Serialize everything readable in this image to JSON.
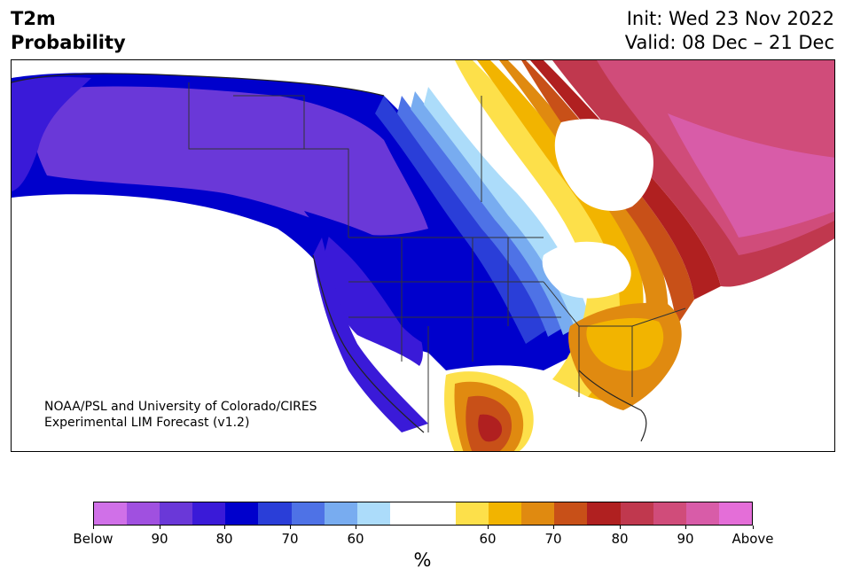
{
  "header": {
    "title_line1": "T2m",
    "title_line2": "Probability",
    "init": "Init: Wed 23 Nov 2022",
    "valid": "Valid: 08 Dec – 21 Dec"
  },
  "map": {
    "credit_line1": "NOAA/PSL and University of Colorado/CIRES",
    "credit_line2": "Experimental LIM Forecast (v1.2)"
  },
  "legend": {
    "colors": [
      "#d070e8",
      "#a050e0",
      "#6a38d8",
      "#3a1ad8",
      "#0000cc",
      "#2a3ed8",
      "#4e72e6",
      "#78acf0",
      "#acdcfa",
      "#ffffff",
      "#ffffff",
      "#fde04a",
      "#f2b400",
      "#e08a10",
      "#c85018",
      "#b02020",
      "#c0384e",
      "#d04c7a",
      "#d85ca8",
      "#e46ed8"
    ],
    "labels": [
      "Below",
      "90",
      "80",
      "70",
      "60",
      "60",
      "70",
      "80",
      "90",
      "Above"
    ],
    "unit": "%"
  }
}
